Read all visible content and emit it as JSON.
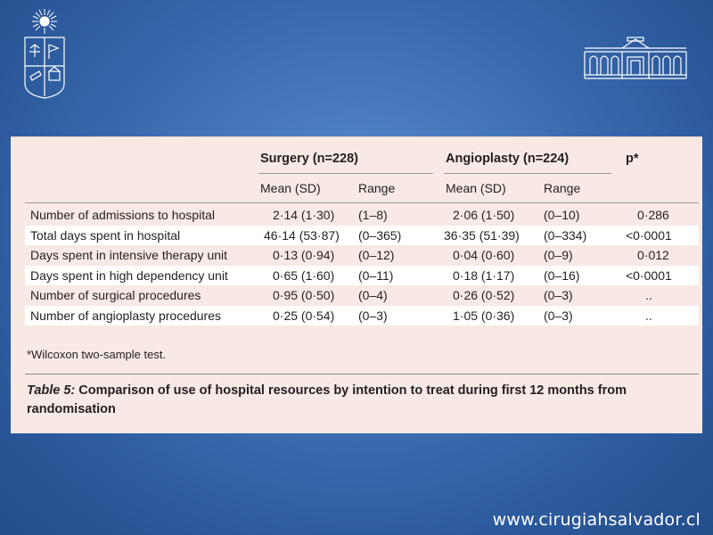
{
  "table": {
    "group_surgery": "Surgery (n=228)",
    "group_angioplasty": "Angioplasty (n=224)",
    "p_header": "p*",
    "sub_mean_sd": "Mean (SD)",
    "sub_range": "Range",
    "rows": [
      {
        "label": "Number of admissions to hospital",
        "s_mean": "2·14 (1·30)",
        "s_range": "(1–8)",
        "a_mean": "2·06 (1·50)",
        "a_range": "(0–10)",
        "p": "0·286"
      },
      {
        "label": "Total days spent in hospital",
        "s_mean": "46·14 (53·87)",
        "s_range": "(0–365)",
        "a_mean": "36·35 (51·39)",
        "a_range": "(0–334)",
        "p": "<0·0001"
      },
      {
        "label": "Days spent in intensive therapy unit",
        "s_mean": "0·13 (0·94)",
        "s_range": "(0–12)",
        "a_mean": "0·04 (0·60)",
        "a_range": "(0–9)",
        "p": "0·012"
      },
      {
        "label": "Days spent in high dependency unit",
        "s_mean": "0·65 (1·60)",
        "s_range": "(0–11)",
        "a_mean": "0·18 (1·17)",
        "a_range": "(0–16)",
        "p": "<0·0001"
      },
      {
        "label": "Number of surgical procedures",
        "s_mean": "0·95 (0·50)",
        "s_range": "(0–4)",
        "a_mean": "0·26 (0·52)",
        "a_range": "(0–3)",
        "p": ".."
      },
      {
        "label": "Number of angioplasty procedures",
        "s_mean": "0·25 (0·54)",
        "s_range": "(0–3)",
        "a_mean": "1·05 (0·36)",
        "a_range": "(0–3)",
        "p": ".."
      }
    ],
    "footnote": "*Wilcoxon two-sample test.",
    "caption_label": "Table 5:",
    "caption_text": " Comparison of use of hospital resources by intention to treat during first 12 months from randomisation"
  },
  "footer_url": "www.cirugiahsalvador.cl",
  "logos": {
    "left": "university-crest-icon",
    "right": "hospital-building-icon"
  },
  "colors": {
    "background": "#3f71b4",
    "table_bg": "#f8e9e4",
    "stripe": "#ffffff",
    "text": "#231f20"
  }
}
